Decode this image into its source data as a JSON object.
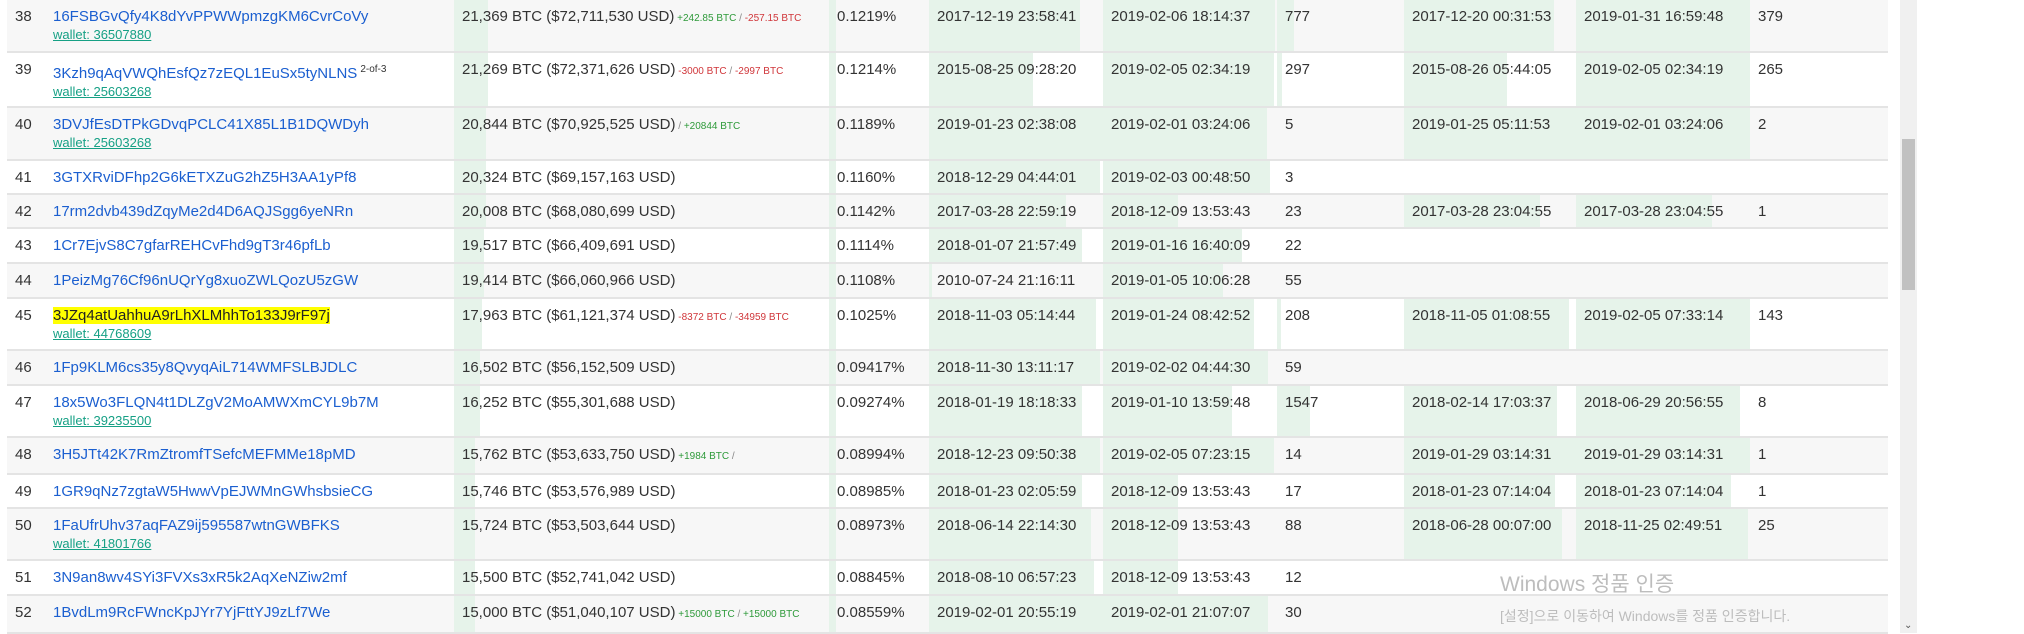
{
  "colors": {
    "bar": "#e6f3ea",
    "link": "#1b5fd0",
    "wallet": "#16a085",
    "positive": "#2e9a3a",
    "negative": "#d0363a",
    "highlight": "#ffff00"
  },
  "rows": [
    {
      "rank": "38",
      "address": "16FSBGvQfy4K8dYvPPWWpmzgKM6CvrCoVy",
      "wallet": "wallet: 36507880",
      "balance": "21,369 BTC ($72,711,530 USD)",
      "change_in": "+242.85 BTC",
      "change_out": "-257.15 BTC",
      "pct": "0.1219%",
      "first_in": "2017-12-19 23:58:41",
      "last_in": "2019-02-06 18:14:37",
      "ins": "777",
      "first_out": "2017-12-20 00:31:53",
      "last_out": "2019-01-31 16:59:48",
      "outs": "379",
      "fill": {
        "balance": 0.09,
        "first_in": 0.87,
        "last_in": 0.99,
        "ins": 0.13,
        "first_out": 0.87,
        "last_out": 1.0
      }
    },
    {
      "rank": "39",
      "address": "3Kzh9qAqVWQhEsfQz7zEQL1EuSx5tyNLNS",
      "multisig": "2-of-3",
      "wallet": "wallet: 25603268",
      "balance": "21,269 BTC ($72,371,626 USD)",
      "change_in": "-3000 BTC",
      "change_out": "-2997 BTC",
      "pct": "0.1214%",
      "first_in": "2015-08-25 09:28:20",
      "last_in": "2019-02-05 02:34:19",
      "ins": "297",
      "first_out": "2015-08-26 05:44:05",
      "last_out": "2019-02-05 02:34:19",
      "outs": "265",
      "fill": {
        "balance": 0.09,
        "first_in": 0.6,
        "last_in": 0.98,
        "ins": 0.04,
        "first_out": 0.6,
        "last_out": 1.0
      }
    },
    {
      "rank": "40",
      "address": "3DVJfEsDTPkGDvqPCLC41X85L1B1DQWDyh",
      "wallet": "wallet: 25603268",
      "balance": "20,844 BTC ($70,925,525 USD)",
      "change_in": "",
      "change_out": "+20844 BTC",
      "pct": "0.1189%",
      "first_in": "2019-01-23 02:38:08",
      "last_in": "2019-02-01 03:24:06",
      "ins": "5",
      "first_out": "2019-01-25 05:11:53",
      "last_out": "2019-02-01 03:24:06",
      "outs": "2",
      "fill": {
        "balance": 0.085,
        "first_in": 1.0,
        "last_in": 0.94,
        "ins": 0,
        "first_out": 1.0,
        "last_out": 1.0
      }
    },
    {
      "rank": "41",
      "address": "3GTXRviDFhp2G6kETXZuG2hZ5H3AA1yPf8",
      "balance": "20,324 BTC ($69,157,163 USD)",
      "pct": "0.1160%",
      "first_in": "2018-12-29 04:44:01",
      "last_in": "2019-02-03 00:48:50",
      "ins": "3",
      "first_out": "",
      "last_out": "",
      "outs": "",
      "fill": {
        "balance": 0.085,
        "first_in": 0.98,
        "last_in": 0.96,
        "ins": 0,
        "first_out": 0,
        "last_out": 0
      }
    },
    {
      "rank": "42",
      "address": "17rm2dvb439dZqyMe2d4D6AQJSgg6yeNRn",
      "balance": "20,008 BTC ($68,080,699 USD)",
      "pct": "0.1142%",
      "first_in": "2017-03-28 22:59:19",
      "last_in": "2018-12-09 13:53:43",
      "ins": "23",
      "first_out": "2017-03-28 23:04:55",
      "last_out": "2017-03-28 23:04:55",
      "outs": "1",
      "fill": {
        "balance": 0.085,
        "first_in": 0.79,
        "last_in": 0.43,
        "ins": 0,
        "first_out": 0.79,
        "last_out": 0.78
      }
    },
    {
      "rank": "43",
      "address": "1Cr7EjvS8C7gfarREHCvFhd9gT3r46pfLb",
      "balance": "19,517 BTC ($66,409,691 USD)",
      "pct": "0.1114%",
      "first_in": "2018-01-07 21:57:49",
      "last_in": "2019-01-16 16:40:09",
      "ins": "22",
      "first_out": "",
      "last_out": "",
      "outs": "",
      "fill": {
        "balance": 0.08,
        "first_in": 0.88,
        "last_in": 0.8,
        "ins": 0,
        "first_out": 0,
        "last_out": 0
      }
    },
    {
      "rank": "44",
      "address": "1PeizMg76Cf96nUQrYg8xuoZWLQozU5zGW",
      "balance": "19,414 BTC ($66,060,966 USD)",
      "pct": "0.1108%",
      "first_in": "2010-07-24 21:16:11",
      "last_in": "2019-01-05 10:06:28",
      "ins": "55",
      "first_out": "",
      "last_out": "",
      "outs": "",
      "fill": {
        "balance": 0.08,
        "first_in": 0.02,
        "last_in": 0.69,
        "ins": 0,
        "first_out": 0,
        "last_out": 0
      }
    },
    {
      "rank": "45",
      "address": "3JZq4atUahhuA9rLhXLMhhTo133J9rF97j",
      "highlighted": true,
      "wallet": "wallet: 44768609",
      "balance": "17,963 BTC ($61,121,374 USD)",
      "change_in": "-8372 BTC",
      "change_out": "-34959 BTC",
      "pct": "0.1025%",
      "first_in": "2018-11-03 05:14:44",
      "last_in": "2019-01-24 08:42:52",
      "ins": "208",
      "first_out": "2018-11-05 01:08:55",
      "last_out": "2019-02-05 07:33:14",
      "outs": "143",
      "fill": {
        "balance": 0.075,
        "first_in": 0.96,
        "last_in": 0.87,
        "ins": 0.03,
        "first_out": 0.96,
        "last_out": 1.0
      }
    },
    {
      "rank": "46",
      "address": "1Fp9KLM6cs35y8QvyqAiL714WMFSLBJDLC",
      "balance": "16,502 BTC ($56,152,509 USD)",
      "pct": "0.09417%",
      "first_in": "2018-11-30 13:11:17",
      "last_in": "2019-02-02 04:44:30",
      "ins": "59",
      "first_out": "",
      "last_out": "",
      "outs": "",
      "fill": {
        "balance": 0.07,
        "first_in": 0.98,
        "last_in": 0.95,
        "ins": 0,
        "first_out": 0,
        "last_out": 0
      }
    },
    {
      "rank": "47",
      "address": "18x5Wo3FLQN4t1DLZgV2MoAMWXmCYL9b7M",
      "wallet": "wallet: 39235500",
      "balance": "16,252 BTC ($55,301,688 USD)",
      "pct": "0.09274%",
      "first_in": "2018-01-19 18:18:33",
      "last_in": "2019-01-10 13:59:48",
      "ins": "1547",
      "first_out": "2018-02-14 17:03:37",
      "last_out": "2018-06-29 20:56:55",
      "outs": "8",
      "fill": {
        "balance": 0.07,
        "first_in": 0.88,
        "last_in": 0.74,
        "ins": 0.26,
        "first_out": 0.89,
        "last_out": 0.94
      }
    },
    {
      "rank": "48",
      "address": "3H5JTt42K7RmZtromfTSefcMEFMMe18pMD",
      "balance": "15,762 BTC ($53,633,750 USD)",
      "change_in": "+1984 BTC",
      "change_out": "",
      "pct": "0.08994%",
      "first_in": "2018-12-23 09:50:38",
      "last_in": "2019-02-05 07:23:15",
      "ins": "14",
      "first_out": "2019-01-29 03:14:31",
      "last_out": "2019-01-29 03:14:31",
      "outs": "1",
      "fill": {
        "balance": 0.055,
        "first_in": 0.98,
        "last_in": 0.98,
        "ins": 0,
        "first_out": 1.0,
        "last_out": 1.0
      }
    },
    {
      "rank": "49",
      "address": "1GR9qNz7zgtaW5HwwVpEJWMnGWhsbsieCG",
      "balance": "15,746 BTC ($53,576,989 USD)",
      "pct": "0.08985%",
      "first_in": "2018-01-23 02:05:59",
      "last_in": "2018-12-09 13:53:43",
      "ins": "17",
      "first_out": "2018-01-23 07:14:04",
      "last_out": "2018-01-23 07:14:04",
      "outs": "1",
      "fill": {
        "balance": 0.055,
        "first_in": 0.88,
        "last_in": 0.43,
        "ins": 0,
        "first_out": 0.88,
        "last_out": 0.89
      }
    },
    {
      "rank": "50",
      "address": "1FaUfrUhv37aqFAZ9ij595587wtnGWBFKS",
      "wallet": "wallet: 41801766",
      "balance": "15,724 BTC ($53,503,644 USD)",
      "pct": "0.08973%",
      "first_in": "2018-06-14 22:14:30",
      "last_in": "2018-12-09 13:53:43",
      "ins": "88",
      "first_out": "2018-06-28 00:07:00",
      "last_out": "2018-11-25 02:49:51",
      "outs": "25",
      "fill": {
        "balance": 0.055,
        "first_in": 0.93,
        "last_in": 0.43,
        "ins": 0,
        "first_out": 0.92,
        "last_out": 0.99
      }
    },
    {
      "rank": "51",
      "address": "3N9an8wv4SYi3FVXs3xR5k2AqXeNZiw2mf",
      "balance": "15,500 BTC ($52,741,042 USD)",
      "pct": "0.08845%",
      "first_in": "2018-08-10 06:57:23",
      "last_in": "2018-12-09 13:53:43",
      "ins": "12",
      "first_out": "",
      "last_out": "",
      "outs": "",
      "fill": {
        "balance": 0.055,
        "first_in": 0.95,
        "last_in": 0.43,
        "ins": 0,
        "first_out": 0,
        "last_out": 0
      }
    },
    {
      "rank": "52",
      "address": "1BvdLm9RcFWncKpJYr7YjFttYJ9zLf7We",
      "balance": "15,000 BTC ($51,040,107 USD)",
      "change_in": "+15000 BTC",
      "change_out": "+15000 BTC",
      "pct": "0.08559%",
      "first_in": "2019-02-01 20:55:19",
      "last_in": "2019-02-01 21:07:07",
      "ins": "30",
      "first_out": "",
      "last_out": "",
      "outs": "",
      "fill": {
        "balance": 0.055,
        "first_in": 1.0,
        "last_in": 0.95,
        "ins": 0,
        "first_out": 0,
        "last_out": 0
      }
    }
  ],
  "watermark": {
    "title": "Windows 정품 인증",
    "subtitle": "[설정]으로 이동하여 Windows를 정품 인증합니다."
  }
}
